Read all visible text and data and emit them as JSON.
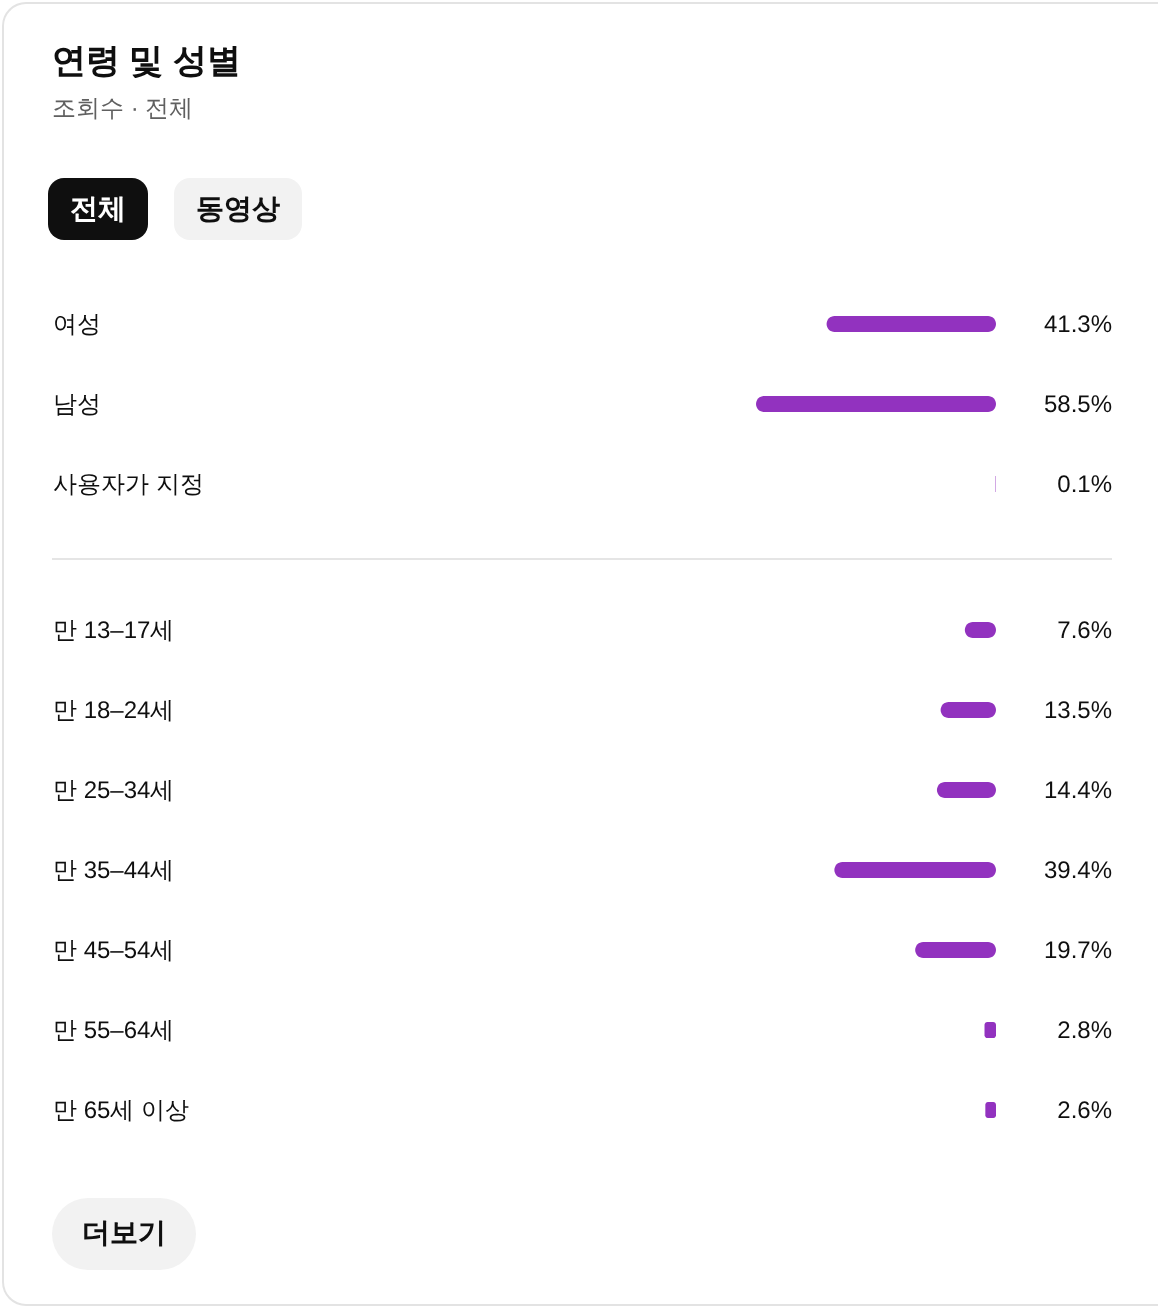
{
  "chart_data": [
    {
      "type": "bar",
      "orientation": "horizontal",
      "title": "연령 및 성별",
      "subtitle": "조회수 · 전체",
      "annotations": [
        "전체",
        "동영상"
      ],
      "categories": [
        "여성",
        "남성",
        "사용자가 지정"
      ],
      "values": [
        41.3,
        58.5,
        0.1
      ],
      "value_labels": [
        "41.3%",
        "58.5%",
        "0.1%"
      ],
      "color": "#9232bf"
    },
    {
      "type": "bar",
      "orientation": "horizontal",
      "annotations": [
        "더보기"
      ],
      "categories": [
        "만 13–17세",
        "만 18–24세",
        "만 25–34세",
        "만 35–44세",
        "만 45–54세",
        "만 55–64세",
        "만 65세 이상"
      ],
      "values": [
        7.6,
        13.5,
        14.4,
        39.4,
        19.7,
        2.8,
        2.6
      ],
      "value_labels": [
        "7.6%",
        "13.5%",
        "14.4%",
        "39.4%",
        "19.7%",
        "2.8%",
        "2.6%"
      ],
      "color": "#9232bf"
    }
  ]
}
